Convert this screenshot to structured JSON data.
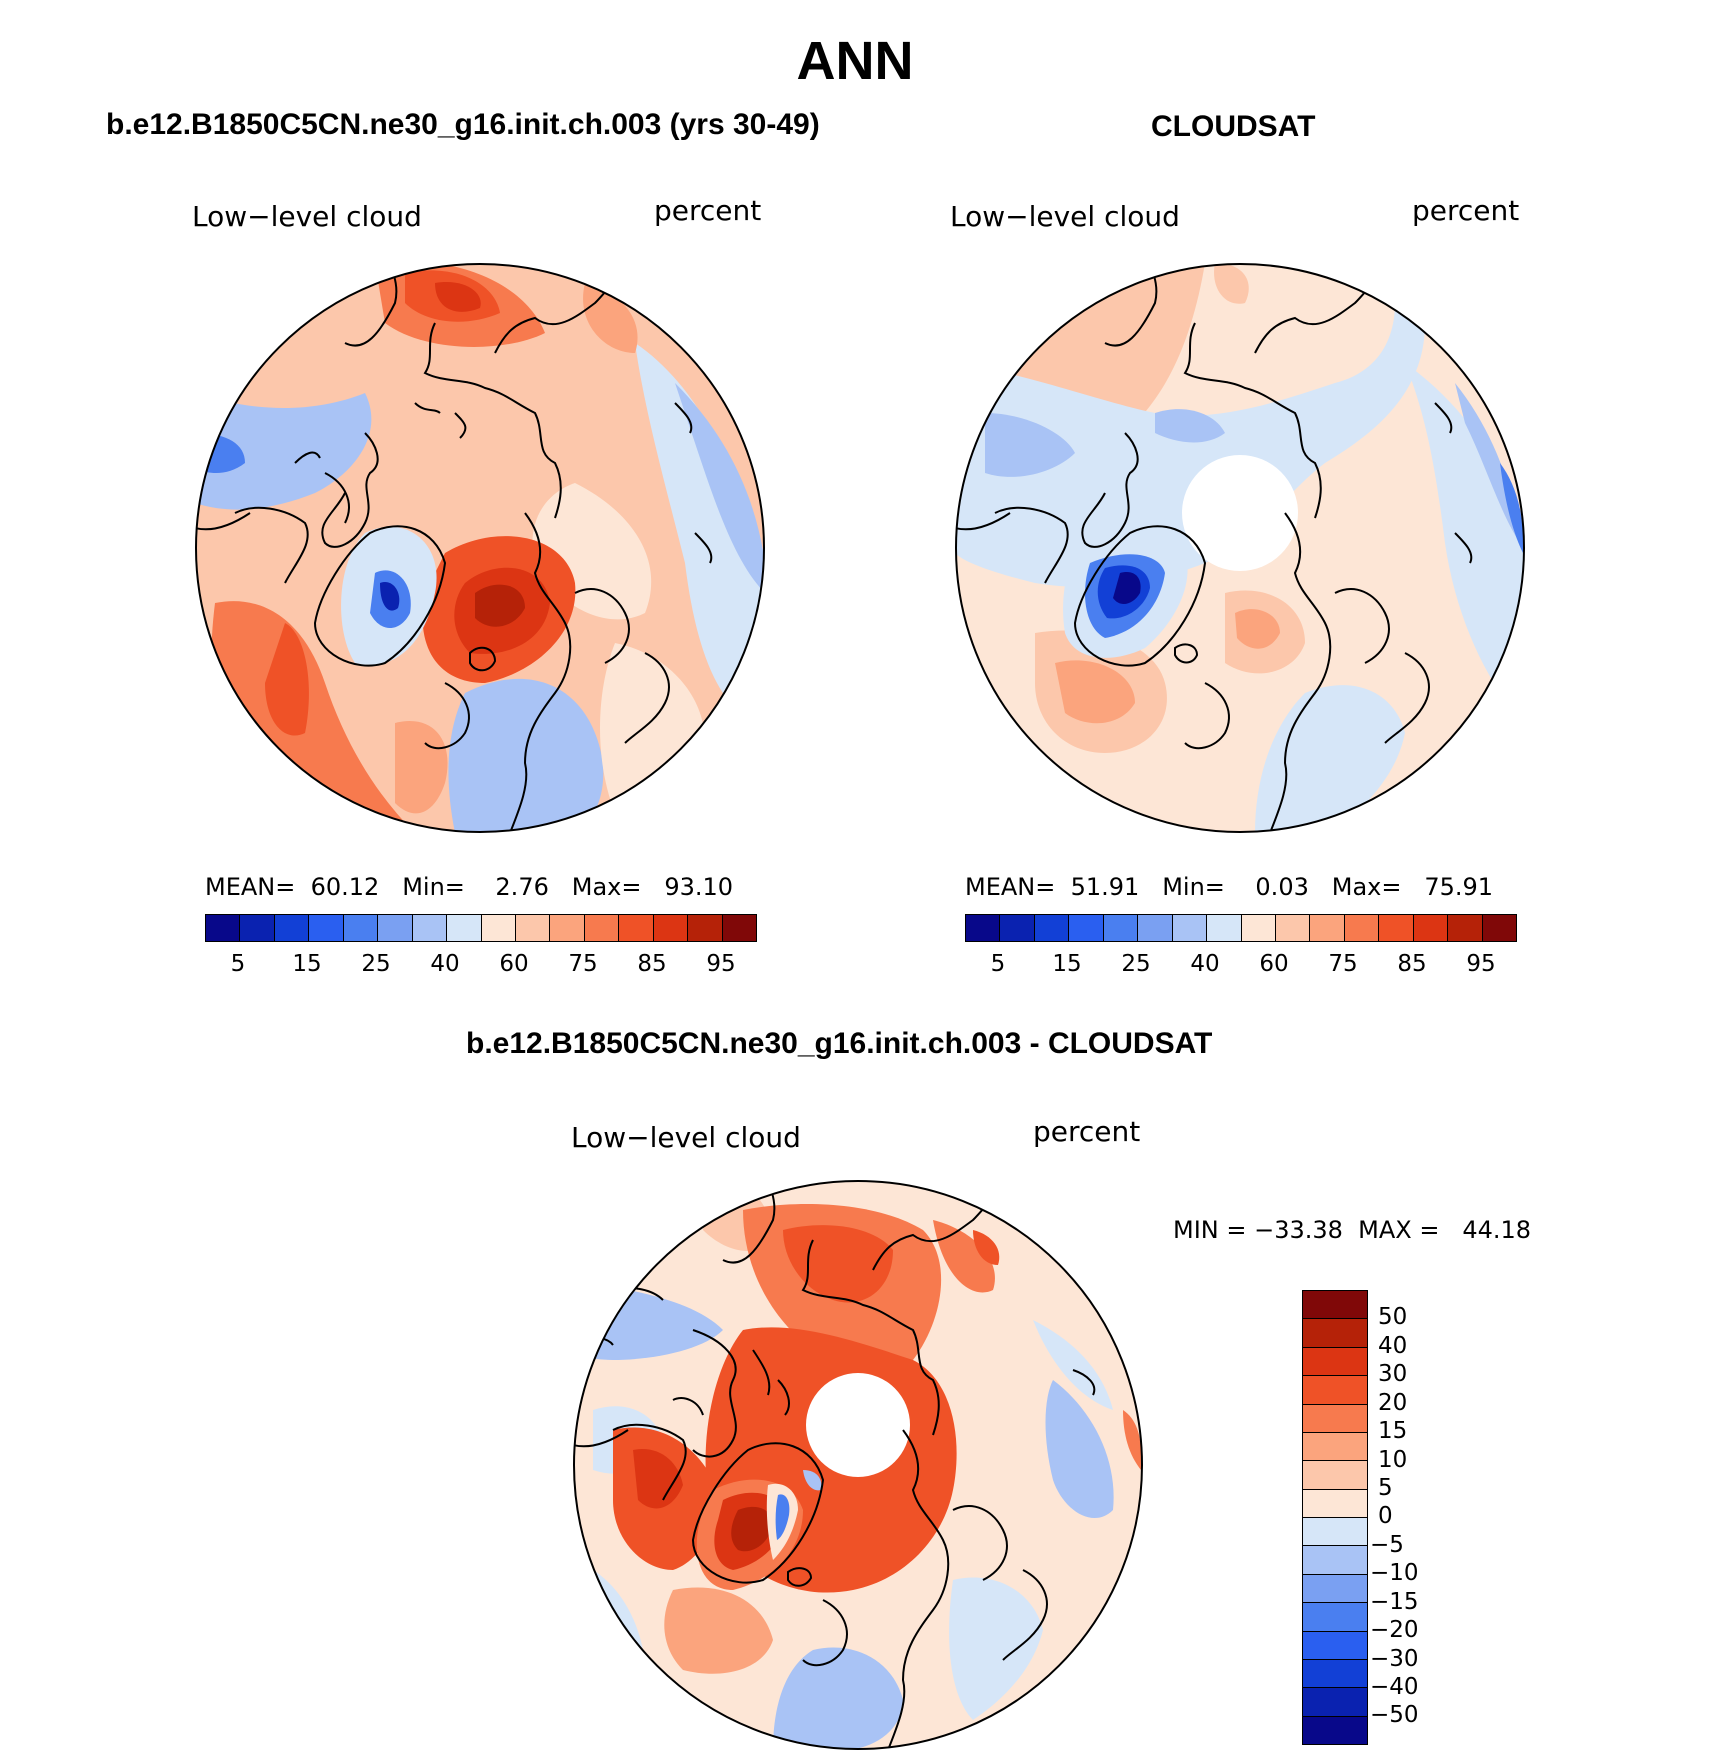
{
  "title": "ANN",
  "panels": [
    {
      "subtitle": "b.e12.B1850C5CN.ne30_g16.init.ch.003 (yrs 30-49)",
      "variable": "Low−level cloud",
      "units": "percent",
      "stats": "MEAN=  60.12   Min=    2.76   Max=   93.10"
    },
    {
      "subtitle": "CLOUDSAT",
      "variable": "Low−level cloud",
      "units": "percent",
      "stats": "MEAN=  51.91   Min=    0.03   Max=   75.91"
    },
    {
      "subtitle": "b.e12.B1850C5CN.ne30_g16.init.ch.003 - CLOUDSAT",
      "variable": "Low−level cloud",
      "units": "percent",
      "stats": "MIN = −33.38  MAX =   44.18"
    }
  ],
  "colorbar_abs": {
    "colors": [
      "#08088a",
      "#0a22b0",
      "#1240d6",
      "#2a5ff0",
      "#4a7ff0",
      "#7aa0f2",
      "#a9c3f5",
      "#d6e6f8",
      "#fde6d6",
      "#fcc7ab",
      "#fba47d",
      "#f77a4e",
      "#ef5227",
      "#dc3513",
      "#b52208",
      "#800808"
    ],
    "tick_labels": [
      "5",
      "15",
      "25",
      "40",
      "60",
      "75",
      "85",
      "95"
    ]
  },
  "colorbar_diff": {
    "colors": [
      "#800808",
      "#b52208",
      "#dc3513",
      "#ef5227",
      "#f77a4e",
      "#fba47d",
      "#fcc7ab",
      "#fde6d6",
      "#d6e6f8",
      "#a9c3f5",
      "#7aa0f2",
      "#4a7ff0",
      "#2a5ff0",
      "#1240d6",
      "#0a22b0",
      "#08088a"
    ],
    "tick_labels": [
      "50",
      "40",
      "30",
      "20",
      "15",
      "10",
      "5",
      "0",
      "−5",
      "−10",
      "−15",
      "−20",
      "−30",
      "−40",
      "−50"
    ]
  }
}
